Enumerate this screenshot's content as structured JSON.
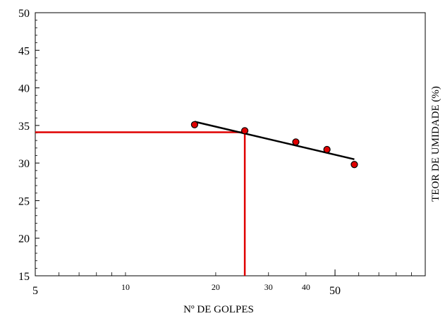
{
  "chart_data": {
    "type": "scatter",
    "title": "",
    "xlabel": "Nº DE GOLPES",
    "ylabel": "TEOR DE UMIDADE (%)",
    "x_scale": "log",
    "xlim": [
      5,
      100
    ],
    "ylim": [
      15,
      50
    ],
    "grid": false,
    "legend": "none",
    "y_ticks": [
      15,
      20,
      25,
      30,
      35,
      40,
      45,
      50
    ],
    "x_ticks_major": [
      5,
      50
    ],
    "x_ticks_minor_labeled": [
      10,
      20,
      30,
      40
    ],
    "points": [
      {
        "x": 17,
        "y": 35.1
      },
      {
        "x": 25,
        "y": 34.3
      },
      {
        "x": 37,
        "y": 32.8
      },
      {
        "x": 47,
        "y": 31.8
      },
      {
        "x": 58,
        "y": 29.8
      }
    ],
    "trendline": {
      "from": [
        17,
        35.5
      ],
      "to": [
        58,
        30.5
      ]
    },
    "reference": {
      "x": 25,
      "y": 34.1
    },
    "colors": {
      "point_fill": "#e00000",
      "point_stroke": "#000000",
      "trendline": "#000000",
      "reference": "#e00000"
    }
  }
}
